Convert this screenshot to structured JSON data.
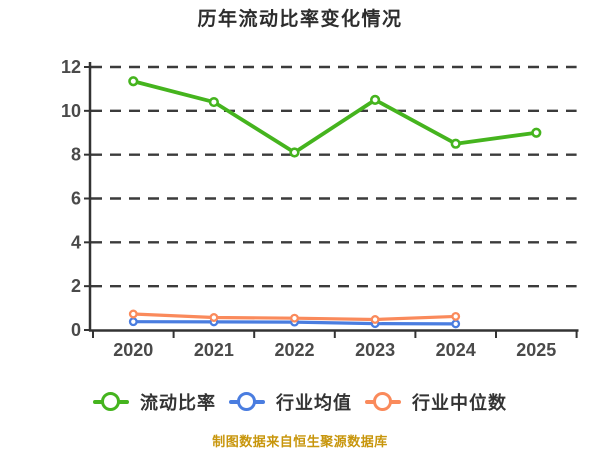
{
  "chart_data": {
    "type": "line",
    "title": "历年流动比率变化情况",
    "categories": [
      "2020",
      "2021",
      "2022",
      "2023",
      "2024",
      "2025"
    ],
    "series": [
      {
        "id": "current-ratio",
        "name": "流动比率",
        "color": "#45b41e",
        "marker": "circle-white-fill",
        "values": [
          11.35,
          10.4,
          8.1,
          10.5,
          8.5,
          9.0
        ]
      },
      {
        "id": "industry-average",
        "name": "行业均值",
        "color": "#4a7de0",
        "marker": "circle-white-fill",
        "values": [
          0.38,
          0.37,
          0.36,
          0.29,
          0.28
        ]
      },
      {
        "id": "industry-median",
        "name": "行业中位数",
        "color": "#fa8a5b",
        "marker": "circle-white-fill",
        "values": [
          0.73,
          0.57,
          0.54,
          0.48,
          0.62
        ]
      }
    ],
    "xlabel": "",
    "ylabel": "",
    "ylim": [
      0,
      12
    ],
    "yticks": [
      0,
      2,
      4,
      6,
      8,
      10,
      12
    ],
    "grid": "horizontal-dashed",
    "legend_position": "bottom"
  },
  "footer": {
    "source_text": "制图数据来自恒生聚源数据库",
    "color": "#c8960c"
  }
}
